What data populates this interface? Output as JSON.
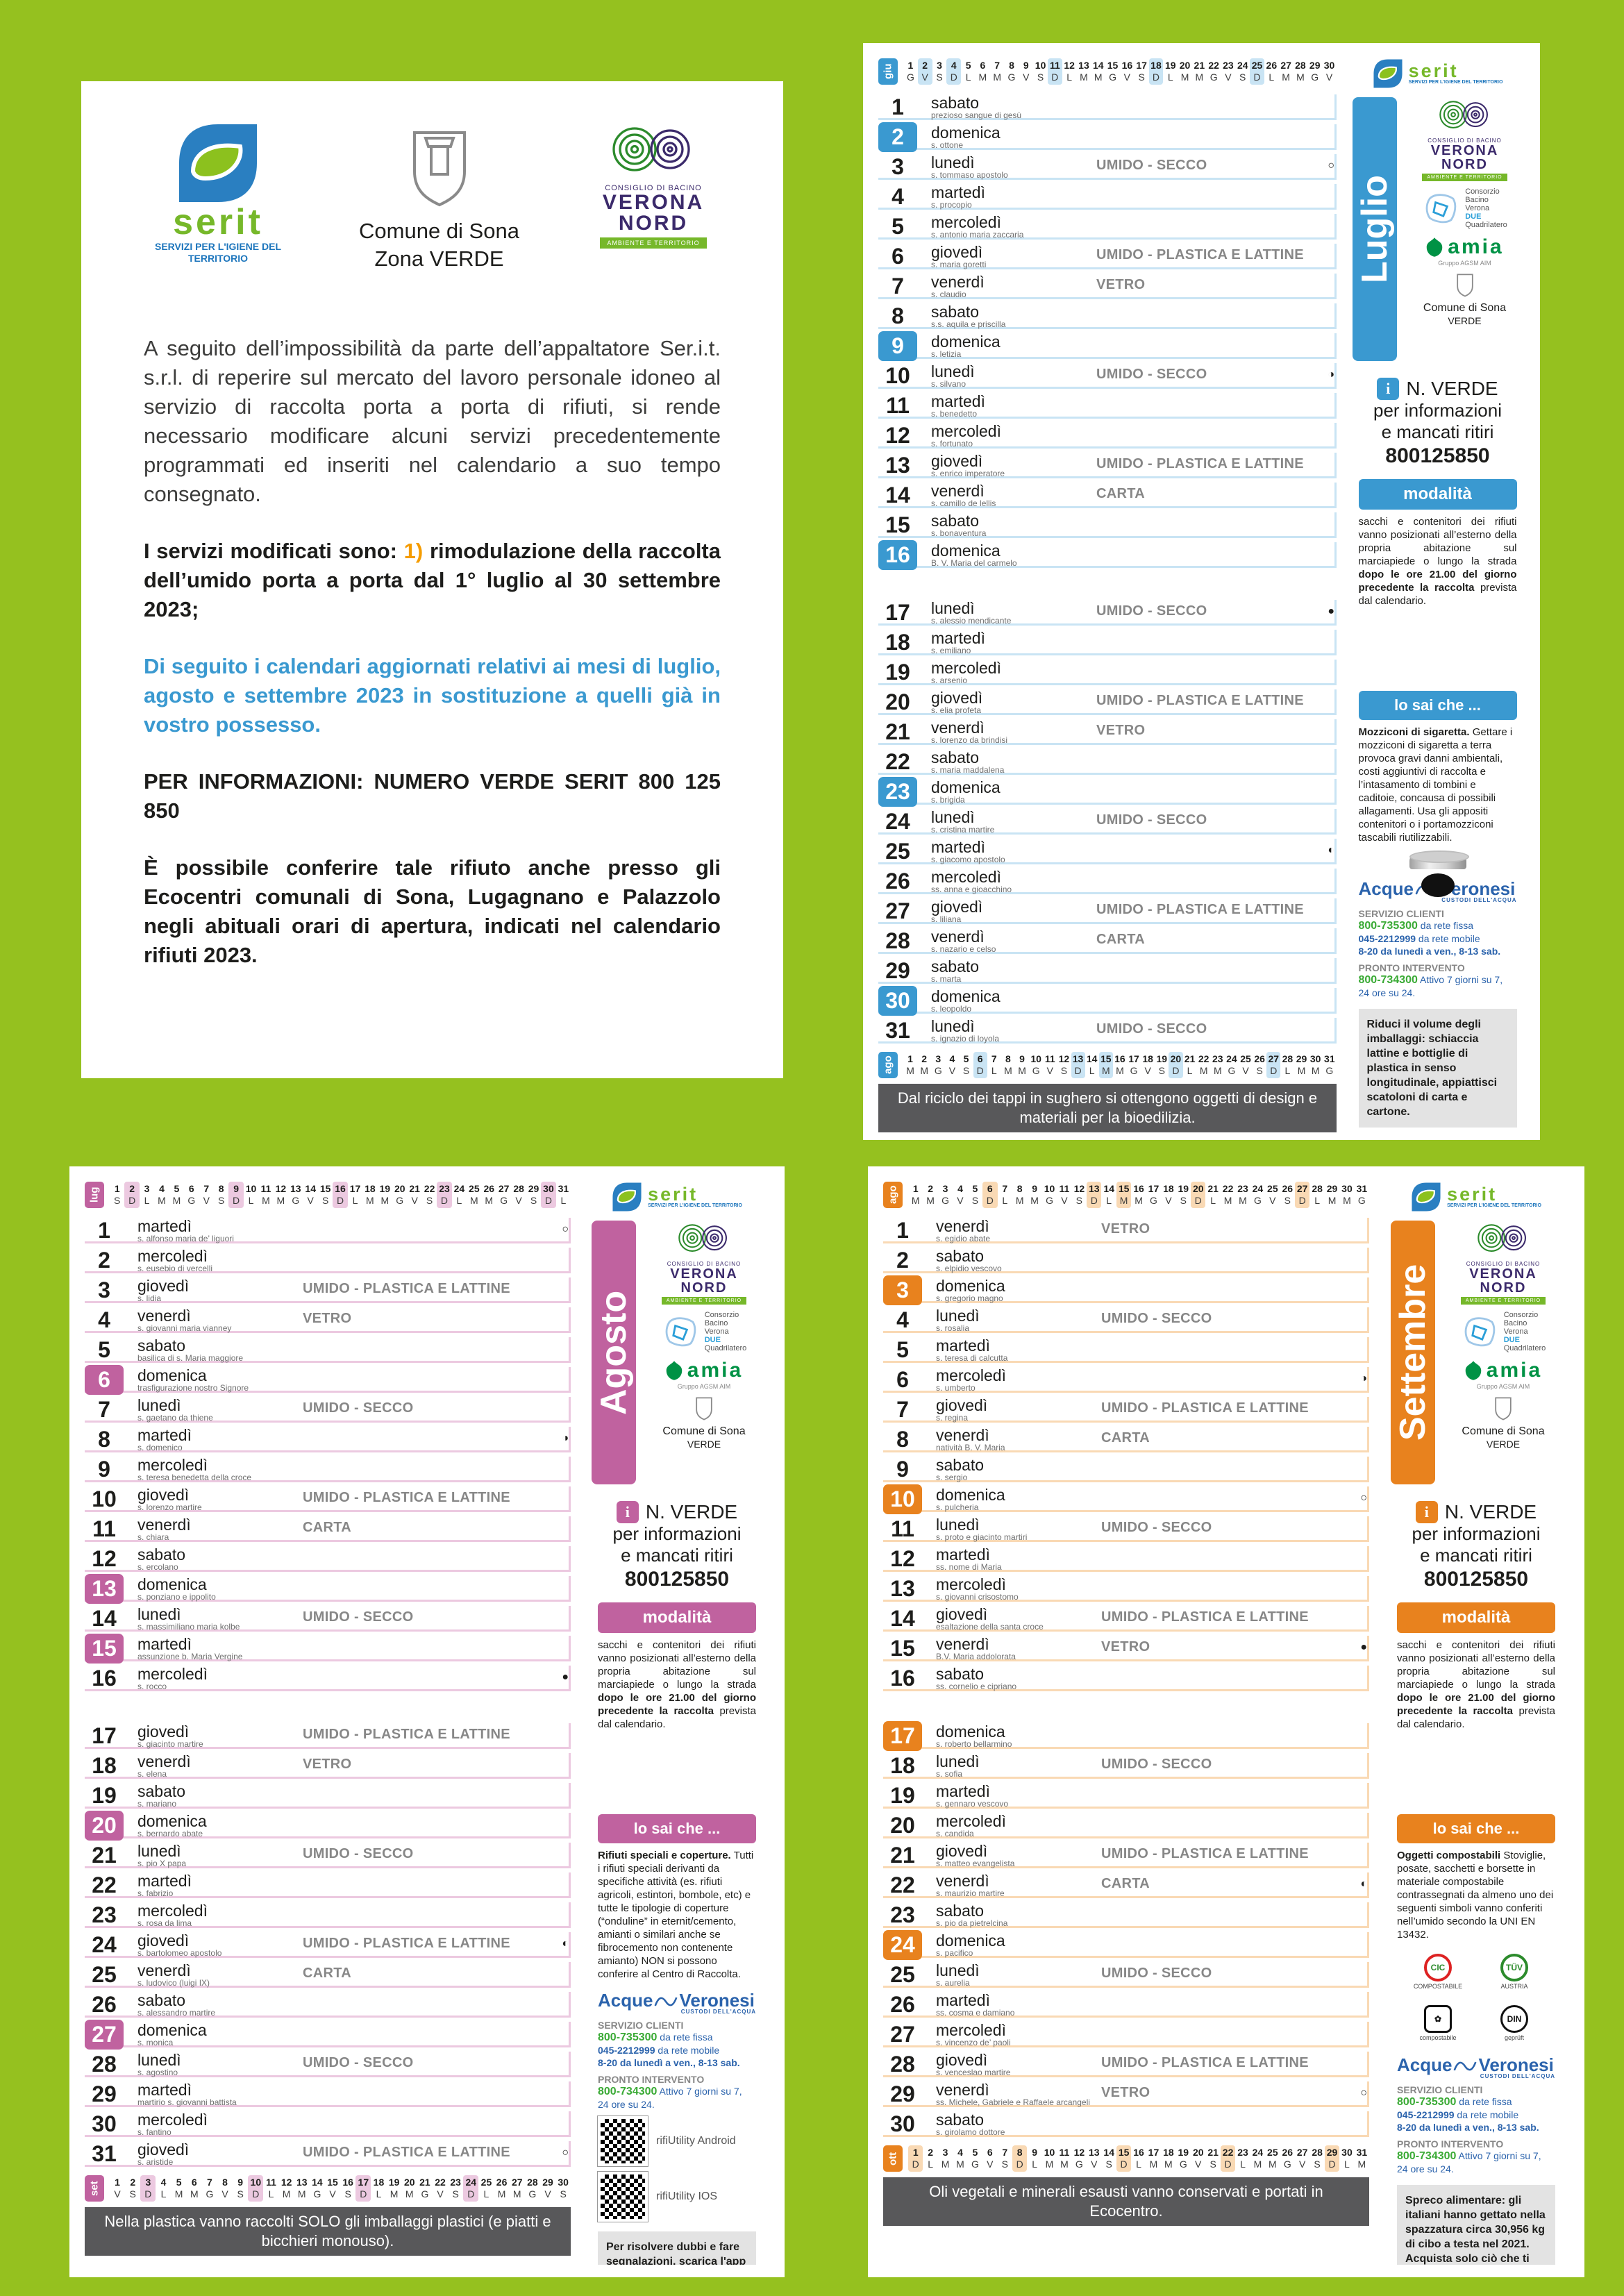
{
  "colors": {
    "background": "#95c11f",
    "luglio_accent": "#3a99d0",
    "agosto_accent": "#c0629f",
    "settembre_accent": "#e8821e",
    "footer_bar": "#58585a"
  },
  "intro": {
    "comune": {
      "line1": "Comune di Sona",
      "line2": "Zona VERDE"
    },
    "paragraphs": {
      "p1": "A seguito dell’impossibilità da parte dell’appaltatore Ser.i.t. s.r.l. di reperire sul mercato del lavoro personale idoneo al servizio di raccolta porta a porta di rifiuti, si rende necessario modificare alcuni servizi precedentemente programmati ed inseriti nel calendario a suo tempo consegnato.",
      "p2_prefix": "I servizi modificati sono: ",
      "p2_num": "1)",
      "p2_rest": " rimodulazione della raccolta dell’umido porta a porta dal 1° luglio al 30 settembre 2023;",
      "p3": "Di seguito i calendari aggiornati relativi ai mesi di luglio, agosto e settembre 2023 in sostituzione a quelli già in vostro possesso.",
      "p4": "PER INFORMAZIONI: NUMERO VERDE SERIT 800 125 850",
      "p5": "È possibile conferire tale rifiuto anche presso gli Ecocentri comunali di Sona, Lugagnano e Palazzolo negli abituali orari di apertura, indicati nel calendario rifiuti 2023."
    }
  },
  "shared": {
    "serit": {
      "name": "serit",
      "sub": "SERVIZI PER L'IGIENE DEL TERRITORIO"
    },
    "verona_nord": {
      "small": "CONSIGLIO DI BACINO",
      "big1": "VERONA",
      "big2": "NORD",
      "bar": "AMBIENTE E TERRITORIO"
    },
    "quadrilatero": {
      "l1": "Consorzio",
      "l2": "Bacino",
      "l3": "Verona",
      "l4": "DUE",
      "l5": "Quadrilatero"
    },
    "amia": {
      "name": "amia",
      "sub": "Gruppo AGSM AIM"
    },
    "comune_label": {
      "line1": "Comune di Sona",
      "line2": "VERDE"
    },
    "info": {
      "nverde": "N. VERDE",
      "line2": "per informazioni",
      "line3": "e mancati ritiri",
      "phone": "800125850"
    },
    "modalita": {
      "label": "modalità",
      "text_plain": "sacchi e contenitori dei rifiuti vanno posizionati all’esterno della propria abitazione sul marciapiede o lungo la strada ",
      "text_bold": "dopo le ore 21.00 del giorno precedente la raccolta ",
      "text_end": "prevista dal calendario."
    },
    "losaiche": "lo sai che ...",
    "acque": {
      "brand1": "Acque",
      "brand2": "Veronesi",
      "tag": "CUSTODI DELL'ACQUA",
      "s1": "SERVIZIO CLIENTI",
      "n1": "800-735300",
      "n1d": " da rete fissa",
      "n2": "045-2212999",
      "n2d": " da rete mobile",
      "hours": "8-20 da lunedì a ven., 8-13 sab.",
      "s2": "PRONTO INTERVENTO",
      "n3": "800-734300",
      "n3d": " Attivo 7 giorni su 7,",
      "n3e": "24 ore su 24."
    }
  },
  "months": [
    {
      "id": "luglio",
      "label": "Luglio",
      "accent": "#3a99d0",
      "accent_light": "#c9e4f4",
      "top_strip": {
        "label": "giu",
        "letters": "GVSDLMMGVSDLMMGVSDLMMGVSDLMMGV",
        "highlights": [
          2,
          4,
          11,
          18,
          25
        ]
      },
      "bottom_strip": {
        "label": "ago",
        "letters": "MMGVSDLMMGVSDLMMGVSDLMMGVSDLMMG",
        "highlights": [
          6,
          13,
          15,
          20,
          27
        ]
      },
      "footer": "Dal riciclo dei tappi in sughero si ottengono oggetti di design e materiali per la bioedilizia.",
      "tip": {
        "title": "Mozziconi di sigaretta.",
        "body": "Gettare i mozziconi di sigaretta a terra provoca gravi danni ambientali, costi aggiuntivi di raccolta e l’intasamento di tombini e caditoie, concausa di possibili allagamenti. Usa gli appositi contenitori o i portamozziconi tascabili riutilizzabili."
      },
      "gray_title": "Riduci il volume degli imballaggi:",
      "gray_body": " schiaccia lattine e bottiglie di plastica in senso longitudinale, appiattisci scatoloni di carta e cartone.",
      "days": [
        [
          1,
          "sabato",
          "prezioso sangue di gesù",
          "",
          0,
          ""
        ],
        [
          2,
          "domenica",
          "s. ottone",
          "",
          1,
          ""
        ],
        [
          3,
          "lunedì",
          "s. tommaso apostolo",
          "UMIDO - SECCO",
          0,
          "○"
        ],
        [
          4,
          "martedì",
          "s. procopio",
          "",
          0,
          ""
        ],
        [
          5,
          "mercoledì",
          "s. antonio maria zaccaria",
          "",
          0,
          ""
        ],
        [
          6,
          "giovedì",
          "s. maria goretti",
          "UMIDO - PLASTICA E LATTINE",
          0,
          ""
        ],
        [
          7,
          "venerdì",
          "s. claudio",
          "VETRO",
          0,
          ""
        ],
        [
          8,
          "sabato",
          "s.s. aquila e priscilla",
          "",
          0,
          ""
        ],
        [
          9,
          "domenica",
          "s. letizia",
          "",
          1,
          ""
        ],
        [
          10,
          "lunedì",
          "s. silvano",
          "UMIDO - SECCO",
          0,
          "◑"
        ],
        [
          11,
          "martedì",
          "s. benedetto",
          "",
          0,
          ""
        ],
        [
          12,
          "mercoledì",
          "s. fortunato",
          "",
          0,
          ""
        ],
        [
          13,
          "giovedì",
          "s. enrico imperatore",
          "UMIDO - PLASTICA E LATTINE",
          0,
          ""
        ],
        [
          14,
          "venerdì",
          "s. camillo de lellis",
          "CARTA",
          0,
          ""
        ],
        [
          15,
          "sabato",
          "s. bonaventura",
          "",
          0,
          ""
        ],
        [
          16,
          "domenica",
          "B. V. Maria del carmelo",
          "",
          1,
          ""
        ],
        [
          17,
          "lunedì",
          "s. alessio mendicante",
          "UMIDO - SECCO",
          0,
          "●"
        ],
        [
          18,
          "martedì",
          "s. emiliano",
          "",
          0,
          ""
        ],
        [
          19,
          "mercoledì",
          "s. arsenio",
          "",
          0,
          ""
        ],
        [
          20,
          "giovedì",
          "s. elia profeta",
          "UMIDO - PLASTICA E LATTINE",
          0,
          ""
        ],
        [
          21,
          "venerdì",
          "s. lorenzo da brindisi",
          "VETRO",
          0,
          ""
        ],
        [
          22,
          "sabato",
          "s. maria maddalena",
          "",
          0,
          ""
        ],
        [
          23,
          "domenica",
          "s. brigida",
          "",
          1,
          ""
        ],
        [
          24,
          "lunedì",
          "s. cristina martire",
          "UMIDO - SECCO",
          0,
          ""
        ],
        [
          25,
          "martedì",
          "s. giacomo apostolo",
          "",
          0,
          "◐"
        ],
        [
          26,
          "mercoledì",
          "ss. anna e gioacchino",
          "",
          0,
          ""
        ],
        [
          27,
          "giovedì",
          "s. liliana",
          "UMIDO - PLASTICA E LATTINE",
          0,
          ""
        ],
        [
          28,
          "venerdì",
          "s. nazario e celso",
          "CARTA",
          0,
          ""
        ],
        [
          29,
          "sabato",
          "s. marta",
          "",
          0,
          ""
        ],
        [
          30,
          "domenica",
          "s. leopoldo",
          "",
          1,
          ""
        ],
        [
          31,
          "lunedì",
          "s. ignazio di loyola",
          "UMIDO - SECCO",
          0,
          ""
        ]
      ]
    },
    {
      "id": "agosto",
      "label": "Agosto",
      "accent": "#c0629f",
      "accent_light": "#ecc9e0",
      "top_strip": {
        "label": "lug",
        "letters": "SDLMMGVSDLMMGVSDLMMGVSDLMMGVSDL",
        "highlights": [
          2,
          9,
          16,
          23,
          30
        ]
      },
      "bottom_strip": {
        "label": "set",
        "letters": "VSDLMMGVSDLMMGVSDLMMGVSDLMMGVS",
        "highlights": [
          3,
          10,
          17,
          24
        ]
      },
      "footer": "Nella plastica vanno raccolti SOLO gli imballaggi plastici (e piatti e bicchieri monouso).",
      "tip": {
        "title": "Rifiuti speciali e coperture.",
        "body": "Tutti i rifiuti speciali derivanti da specifiche attività (es. rifiuti agricoli, estintori, bombole, etc) e tutte le tipologie di coperture (“onduline” in eternit/cemento, amianti o similari anche se fibrocemento non contenente amianto) NON si possono conferire al Centro di Raccolta."
      },
      "gray_title": "Per risolvere dubbi e fare segnalazioni, scarica l'app rifiUtility",
      "gray_body": "",
      "qr_android": "rifiUtility Android",
      "qr_ios": "rifiUtility IOS",
      "days": [
        [
          1,
          "martedì",
          "s. alfonso maria de’ liguori",
          "",
          0,
          "○"
        ],
        [
          2,
          "mercoledì",
          "s. eusebio di vercelli",
          "",
          0,
          ""
        ],
        [
          3,
          "giovedì",
          "s. lidia",
          "UMIDO - PLASTICA E LATTINE",
          0,
          ""
        ],
        [
          4,
          "venerdì",
          "s. giovanni maria vianney",
          "VETRO",
          0,
          ""
        ],
        [
          5,
          "sabato",
          "basilica di s. Maria maggiore",
          "",
          0,
          ""
        ],
        [
          6,
          "domenica",
          "trasfigurazione nostro Signore",
          "",
          1,
          ""
        ],
        [
          7,
          "lunedì",
          "s. gaetano da thiene",
          "UMIDO - SECCO",
          0,
          ""
        ],
        [
          8,
          "martedì",
          "s. domenico",
          "",
          0,
          "◑"
        ],
        [
          9,
          "mercoledì",
          "s. teresa benedetta della croce",
          "",
          0,
          ""
        ],
        [
          10,
          "giovedì",
          "s. lorenzo martire",
          "UMIDO - PLASTICA E LATTINE",
          0,
          ""
        ],
        [
          11,
          "venerdì",
          "s. chiara",
          "CARTA",
          0,
          ""
        ],
        [
          12,
          "sabato",
          "s. ercolano",
          "",
          0,
          ""
        ],
        [
          13,
          "domenica",
          "s. ponziano e ippolito",
          "",
          1,
          ""
        ],
        [
          14,
          "lunedì",
          "s. massimiliano maria kolbe",
          "UMIDO - SECCO",
          0,
          ""
        ],
        [
          15,
          "martedì",
          "assunzione b. Maria Vergine",
          "",
          1,
          ""
        ],
        [
          16,
          "mercoledì",
          "s. rocco",
          "",
          0,
          "●"
        ],
        [
          17,
          "giovedì",
          "s. giacinto martire",
          "UMIDO - PLASTICA E LATTINE",
          0,
          ""
        ],
        [
          18,
          "venerdì",
          "s. elena",
          "VETRO",
          0,
          ""
        ],
        [
          19,
          "sabato",
          "s. mariano",
          "",
          0,
          ""
        ],
        [
          20,
          "domenica",
          "s. bernardo abate",
          "",
          1,
          ""
        ],
        [
          21,
          "lunedì",
          "s. pio X papa",
          "UMIDO - SECCO",
          0,
          ""
        ],
        [
          22,
          "martedì",
          "s. fabrizio",
          "",
          0,
          ""
        ],
        [
          23,
          "mercoledì",
          "s. rosa da lima",
          "",
          0,
          ""
        ],
        [
          24,
          "giovedì",
          "s. bartolomeo apostolo",
          "UMIDO - PLASTICA E LATTINE",
          0,
          "◐"
        ],
        [
          25,
          "venerdì",
          "s. ludovico (luigi IX)",
          "CARTA",
          0,
          ""
        ],
        [
          26,
          "sabato",
          "s. alessandro martire",
          "",
          0,
          ""
        ],
        [
          27,
          "domenica",
          "s. monica",
          "",
          1,
          ""
        ],
        [
          28,
          "lunedì",
          "s. agostino",
          "UMIDO - SECCO",
          0,
          ""
        ],
        [
          29,
          "martedì",
          "martirio s. giovanni battista",
          "",
          0,
          ""
        ],
        [
          30,
          "mercoledì",
          "s. fantino",
          "",
          0,
          ""
        ],
        [
          31,
          "giovedì",
          "s. aristide",
          "UMIDO - PLASTICA E LATTINE",
          0,
          "○"
        ]
      ]
    },
    {
      "id": "settembre",
      "label": "Settembre",
      "accent": "#e8821e",
      "accent_light": "#f9d9b4",
      "top_strip": {
        "label": "ago",
        "letters": "MMGVSDLMMGVSDLMMGVSDLMMGVSDLMMG",
        "highlights": [
          6,
          13,
          15,
          20,
          27
        ]
      },
      "bottom_strip": {
        "label": "ott",
        "letters": "DLMMGVSDLMMGVSDLMMGVSDLMMGVSDLM",
        "highlights": [
          1,
          8,
          15,
          22,
          29
        ]
      },
      "footer": "Oli vegetali e minerali esausti vanno conservati e portati in Ecocentro.",
      "tip": {
        "title": "Oggetti compostabili",
        "body": "Stoviglie, posate, sacchetti e borsette in materiale compostabile contrassegnati da almeno uno dei seguenti simboli vanno conferiti nell’umido secondo la UNI EN 13432."
      },
      "gray_title": "Spreco alimentare:",
      "gray_body": " gli italiani hanno gettato nella spazzatura circa 30,956 kg di cibo a testa nel 2021. Acquista solo ciò che ti serve, privilegia i prodotti di stagione e a km zero, fai attenzione a quantità e scadenza degli alimenti.",
      "compost": {
        "cic": "CIC",
        "cic_label": "COMPOSTABILE",
        "tuv": "TÜV",
        "tuv_label": "AUSTRIA",
        "seed": "✿",
        "seed_label": "compostabile",
        "din": "DIN",
        "din_label": "geprüft"
      },
      "days": [
        [
          1,
          "venerdì",
          "s. egidio abate",
          "VETRO",
          0,
          ""
        ],
        [
          2,
          "sabato",
          "s. elpidio vescovo",
          "",
          0,
          ""
        ],
        [
          3,
          "domenica",
          "s. gregorio magno",
          "",
          1,
          ""
        ],
        [
          4,
          "lunedì",
          "s. rosalia",
          "UMIDO - SECCO",
          0,
          ""
        ],
        [
          5,
          "martedì",
          "s. teresa di calcutta",
          "",
          0,
          ""
        ],
        [
          6,
          "mercoledì",
          "s. umberto",
          "",
          0,
          "◑"
        ],
        [
          7,
          "giovedì",
          "s. regina",
          "UMIDO - PLASTICA E LATTINE",
          0,
          ""
        ],
        [
          8,
          "venerdì",
          "natività B. V. Maria",
          "CARTA",
          0,
          ""
        ],
        [
          9,
          "sabato",
          "s. sergio",
          "",
          0,
          ""
        ],
        [
          10,
          "domenica",
          "s. pulcheria",
          "",
          1,
          "○"
        ],
        [
          11,
          "lunedì",
          "s. proto e giacinto martiri",
          "UMIDO - SECCO",
          0,
          ""
        ],
        [
          12,
          "martedì",
          "ss. nome di Maria",
          "",
          0,
          ""
        ],
        [
          13,
          "mercoledì",
          "s. giovanni crisostomo",
          "",
          0,
          ""
        ],
        [
          14,
          "giovedì",
          "esaltazione della santa croce",
          "UMIDO - PLASTICA E LATTINE",
          0,
          ""
        ],
        [
          15,
          "venerdì",
          "B.V. Maria addolorata",
          "VETRO",
          0,
          "●"
        ],
        [
          16,
          "sabato",
          "ss. cornelio e cipriano",
          "",
          0,
          ""
        ],
        [
          17,
          "domenica",
          "s. roberto bellarmino",
          "",
          1,
          ""
        ],
        [
          18,
          "lunedì",
          "s. sofia",
          "UMIDO - SECCO",
          0,
          ""
        ],
        [
          19,
          "martedì",
          "s. gennaro vescovo",
          "",
          0,
          ""
        ],
        [
          20,
          "mercoledì",
          "s. candida",
          "",
          0,
          ""
        ],
        [
          21,
          "giovedì",
          "s. matteo evangelista",
          "UMIDO - PLASTICA E LATTINE",
          0,
          ""
        ],
        [
          22,
          "venerdì",
          "s. maurizio martire",
          "CARTA",
          0,
          "◐"
        ],
        [
          23,
          "sabato",
          "s. pio da pietrelcina",
          "",
          0,
          ""
        ],
        [
          24,
          "domenica",
          "s. pacifico",
          "",
          1,
          ""
        ],
        [
          25,
          "lunedì",
          "s. aurelia",
          "UMIDO - SECCO",
          0,
          ""
        ],
        [
          26,
          "martedì",
          "ss. cosma e damiano",
          "",
          0,
          ""
        ],
        [
          27,
          "mercoledì",
          "s. vincenzo de’ paoli",
          "",
          0,
          ""
        ],
        [
          28,
          "giovedì",
          "s. venceslao martire",
          "UMIDO - PLASTICA E LATTINE",
          0,
          ""
        ],
        [
          29,
          "venerdì",
          "ss. Michele, Gabriele e Raffaele arcangeli",
          "VETRO",
          0,
          "○"
        ],
        [
          30,
          "sabato",
          "s. girolamo dottore",
          "",
          0,
          ""
        ]
      ]
    }
  ]
}
